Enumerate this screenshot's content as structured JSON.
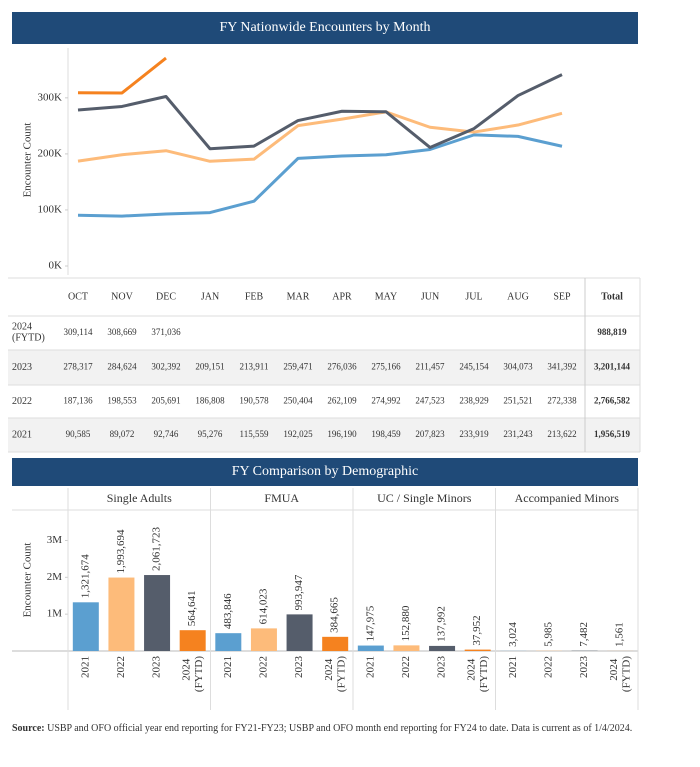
{
  "chart_data": [
    {
      "type": "line",
      "title": "FY Nationwide Encounters by Month",
      "y_label": "Encounter Count",
      "categories": [
        "OCT",
        "NOV",
        "DEC",
        "JAN",
        "FEB",
        "MAR",
        "APR",
        "MAY",
        "JUN",
        "JUL",
        "AUG",
        "SEP"
      ],
      "ylim": [
        0,
        380000
      ],
      "yticks": [
        {
          "value": 0,
          "label": "0K"
        },
        {
          "value": 100000,
          "label": "100K"
        },
        {
          "value": 200000,
          "label": "200K"
        },
        {
          "value": 300000,
          "label": "300K"
        }
      ],
      "total_header": "Total",
      "series": [
        {
          "name": "2024 (FYTD)",
          "color": "#f5821f",
          "values": [
            309114,
            308669,
            371036,
            null,
            null,
            null,
            null,
            null,
            null,
            null,
            null,
            null
          ],
          "value_labels": [
            "309,114",
            "308,669",
            "371,036",
            null,
            null,
            null,
            null,
            null,
            null,
            null,
            null,
            null
          ],
          "total": "988,819"
        },
        {
          "name": "2023",
          "color": "#555d6b",
          "values": [
            278317,
            284624,
            302392,
            209151,
            213911,
            259471,
            276036,
            275166,
            211457,
            245154,
            304073,
            341392
          ],
          "value_labels": [
            "278,317",
            "284,624",
            "302,392",
            "209,151",
            "213,911",
            "259,471",
            "276,036",
            "275,166",
            "211,457",
            "245,154",
            "304,073",
            "341,392"
          ],
          "total": "3,201,144"
        },
        {
          "name": "2022",
          "color": "#fdbb7a",
          "values": [
            187136,
            198553,
            205691,
            186808,
            190578,
            250404,
            262109,
            274992,
            247523,
            238929,
            251521,
            272338
          ],
          "value_labels": [
            "187,136",
            "198,553",
            "205,691",
            "186,808",
            "190,578",
            "250,404",
            "262,109",
            "274,992",
            "247,523",
            "238,929",
            "251,521",
            "272,338"
          ],
          "total": "2,766,582"
        },
        {
          "name": "2021",
          "color": "#5b9fd0",
          "values": [
            90585,
            89072,
            92746,
            95276,
            115559,
            192025,
            196190,
            198459,
            207823,
            233919,
            231243,
            213622
          ],
          "value_labels": [
            "90,585",
            "89,072",
            "92,746",
            "95,276",
            "115,559",
            "192,025",
            "196,190",
            "198,459",
            "207,823",
            "233,919",
            "231,243",
            "213,622"
          ],
          "total": "1,956,519"
        }
      ]
    },
    {
      "type": "bar",
      "title": "FY Comparison by Demographic",
      "y_label": "Encounter Count",
      "categories": [
        "2021",
        "2022",
        "2023",
        "2024 (FYTD)"
      ],
      "colors": [
        "#5b9fd0",
        "#fdbb7a",
        "#555d6b",
        "#f5821f"
      ],
      "ylim": [
        0,
        3800000
      ],
      "yticks": [
        {
          "value": 1000000,
          "label": "1M"
        },
        {
          "value": 2000000,
          "label": "2M"
        },
        {
          "value": 3000000,
          "label": "3M"
        }
      ],
      "panels": [
        {
          "name": "Single Adults",
          "values": [
            1321674,
            1993694,
            2061723,
            564641
          ],
          "value_labels": [
            "1,321,674",
            "1,993,694",
            "2,061,723",
            "564,641"
          ]
        },
        {
          "name": "FMUA",
          "values": [
            483846,
            614023,
            993947,
            384665
          ],
          "value_labels": [
            "483,846",
            "614,023",
            "993,947",
            "384,665"
          ]
        },
        {
          "name": "UC / Single Minors",
          "values": [
            147975,
            152880,
            137992,
            37952
          ],
          "value_labels": [
            "147,975",
            "152,880",
            "137,992",
            "37,952"
          ]
        },
        {
          "name": "Accompanied Minors",
          "values": [
            3024,
            5985,
            7482,
            1561
          ],
          "value_labels": [
            "3,024",
            "5,985",
            "7,482",
            "1,561"
          ]
        }
      ]
    }
  ],
  "source": {
    "label": "Source:",
    "text": " USBP and OFO official year end reporting for FY21-FY23; USBP and OFO month end reporting for FY24 to date. Data is current as of 1/4/2024."
  }
}
